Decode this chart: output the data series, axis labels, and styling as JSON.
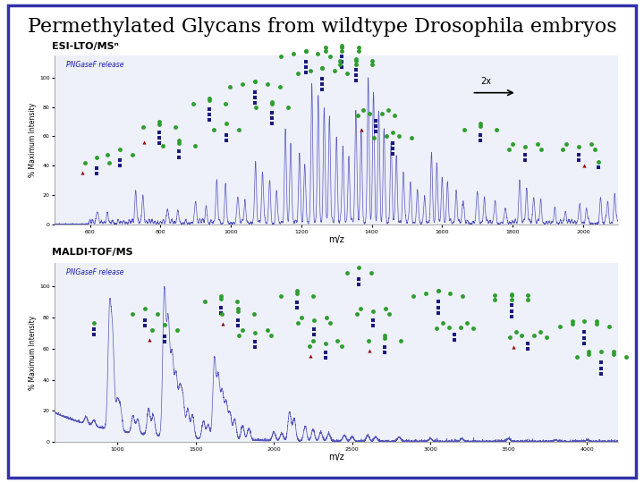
{
  "title": "Permethylated Glycans from wildtype Drosophila embryos",
  "title_fontsize": 16,
  "background_color": "#ffffff",
  "border_color": "#3333aa",
  "panel1_label": "ESI-LTO/MSⁿ",
  "panel2_label": "MALDI-TOF/MS",
  "pngase_label": "PNGaseF release",
  "xlabel": "m/z",
  "ylabel": "% Maximum Intensity",
  "green_color": "#2d9e2d",
  "blue_color": "#1a1a7c",
  "red_color": "#990000",
  "line_color": "#5555bb",
  "text_color": "#1a1aaa",
  "panel_bg": "#eef0fa"
}
